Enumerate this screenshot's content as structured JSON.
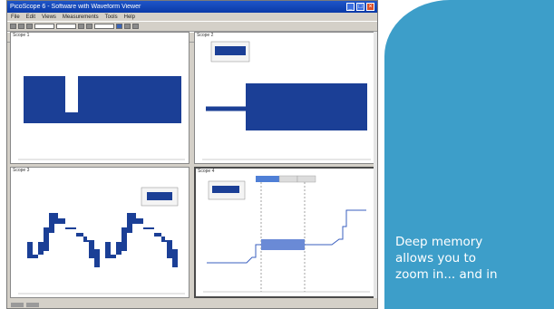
{
  "window": {
    "title": "PicoScope 6 - Software with Waveform Viewer",
    "menus": [
      "File",
      "Edit",
      "Views",
      "Measurements",
      "Tools",
      "Help"
    ]
  },
  "scopes": [
    {
      "label": "Scope 1"
    },
    {
      "label": "Scope 2"
    },
    {
      "label": "Scope 3"
    },
    {
      "label": "Scope 4"
    }
  ],
  "caption": {
    "lines": [
      "Deep memory",
      "allows you to",
      "zoom in... and in"
    ]
  },
  "colors": {
    "trace": "#1b3f96",
    "panel": "#3d9ec9"
  }
}
